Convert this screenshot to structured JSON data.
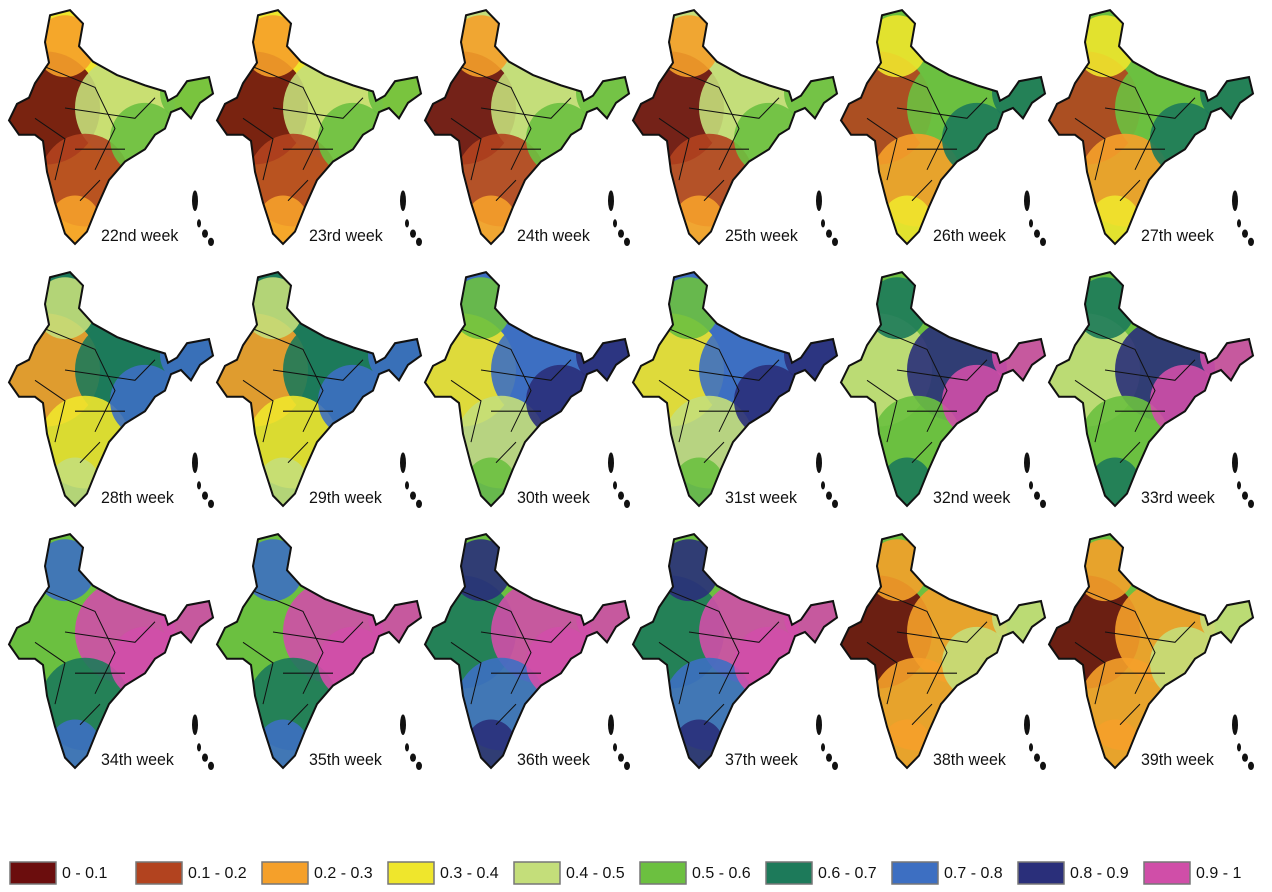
{
  "panels": [
    {
      "label": "22nd week"
    },
    {
      "label": "23rd week"
    },
    {
      "label": "24th week"
    },
    {
      "label": "25th week"
    },
    {
      "label": "26th week"
    },
    {
      "label": "27th week"
    },
    {
      "label": "28th week"
    },
    {
      "label": "29th week"
    },
    {
      "label": "30th week"
    },
    {
      "label": "31st week"
    },
    {
      "label": "32nd week"
    },
    {
      "label": "33rd week"
    },
    {
      "label": "34th week"
    },
    {
      "label": "35th week"
    },
    {
      "label": "36th week"
    },
    {
      "label": "37th week"
    },
    {
      "label": "38th week"
    },
    {
      "label": "39th week"
    }
  ],
  "legend": [
    {
      "label": "0 - 0.1",
      "color": "#6b0d0d"
    },
    {
      "label": "0.1 - 0.2",
      "color": "#b2431f"
    },
    {
      "label": "0.2 - 0.3",
      "color": "#f5a02a"
    },
    {
      "label": "0.3 - 0.4",
      "color": "#efe62c"
    },
    {
      "label": "0.4 - 0.5",
      "color": "#c4de7a"
    },
    {
      "label": "0.5 - 0.6",
      "color": "#6cc040"
    },
    {
      "label": "0.6 - 0.7",
      "color": "#1d7a5a"
    },
    {
      "label": "0.7 - 0.8",
      "color": "#3d6fc2"
    },
    {
      "label": "0.8 - 0.9",
      "color": "#2a2f7a"
    },
    {
      "label": "0.9 - 1",
      "color": "#d04ea8"
    }
  ]
}
